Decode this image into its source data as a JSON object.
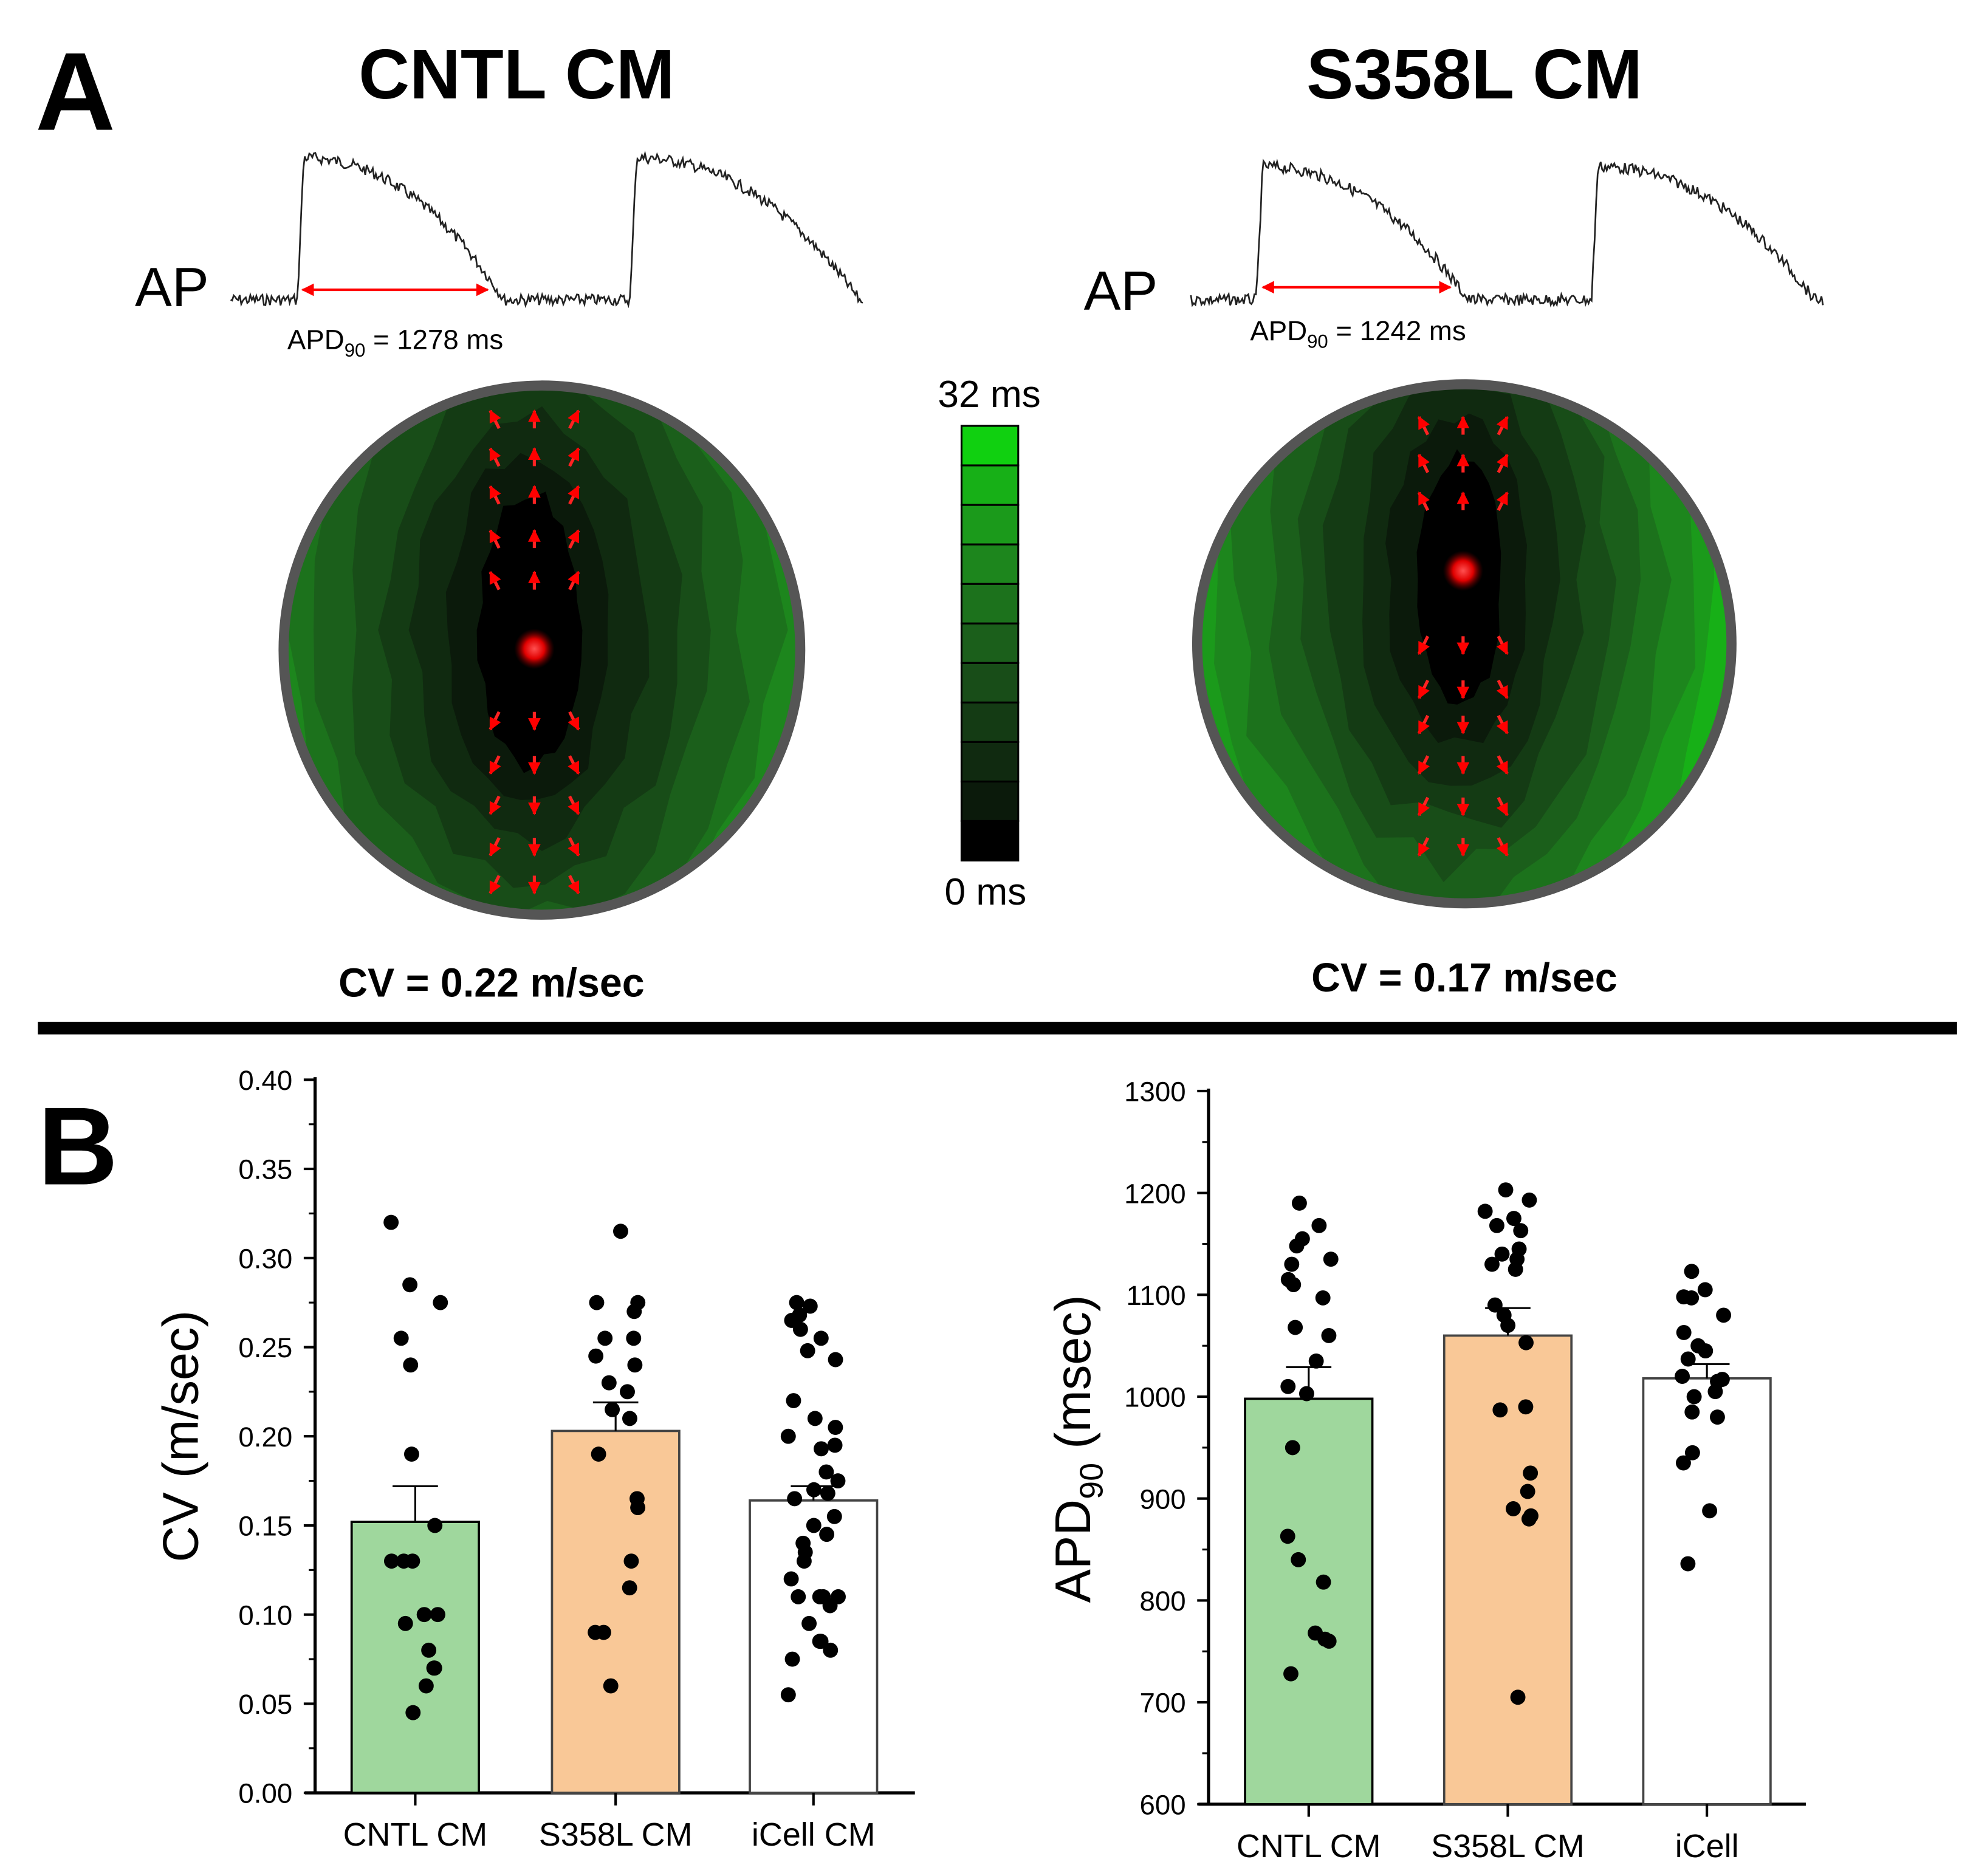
{
  "panel_a": {
    "label": "A",
    "left": {
      "title": "CNTL CM",
      "ap_label": "AP",
      "apd_prefix": "APD",
      "apd_sub": "90",
      "apd_value": " = 1278 ms",
      "cv_text": "CV = 0.22 m/sec"
    },
    "right": {
      "title": "S358L CM",
      "ap_label": "AP",
      "apd_prefix": "APD",
      "apd_sub": "90",
      "apd_value": " = 1242 ms",
      "cv_text": "CV = 0.17 m/sec"
    },
    "colorbar": {
      "max_label": "32 ms",
      "min_label": "0 ms",
      "range_ms": [
        0,
        32
      ],
      "segments": 11,
      "colors": [
        "#000000",
        "#0b1a0b",
        "#102a10",
        "#143b14",
        "#184d18",
        "#1b5f1b",
        "#1c721c",
        "#1d861d",
        "#1b9a1b",
        "#17b017",
        "#10d010"
      ]
    }
  },
  "panel_b": {
    "label": "B"
  },
  "chart_data": [
    {
      "type": "bar",
      "title": "",
      "xlabel": "",
      "ylabel": "CV (m/sec)",
      "ylim": [
        0,
        0.4
      ],
      "yticks": [
        "0.00",
        "0.05",
        "0.10",
        "0.15",
        "0.20",
        "0.25",
        "0.30",
        "0.35",
        "0.40"
      ],
      "categories": [
        "CNTL CM",
        "S358L CM",
        "iCell CM"
      ],
      "colors": [
        "#9fd79d",
        "#f9c897",
        "#ffffff"
      ],
      "values": [
        0.152,
        0.203,
        0.164
      ],
      "error_upper": [
        0.172,
        0.219,
        0.172
      ],
      "points": [
        [
          0.32,
          0.285,
          0.275,
          0.255,
          0.24,
          0.19,
          0.15,
          0.13,
          0.13,
          0.13,
          0.1,
          0.1,
          0.095,
          0.08,
          0.07,
          0.07,
          0.06,
          0.045
        ],
        [
          0.315,
          0.275,
          0.275,
          0.27,
          0.255,
          0.255,
          0.245,
          0.24,
          0.23,
          0.225,
          0.215,
          0.21,
          0.19,
          0.165,
          0.16,
          0.13,
          0.115,
          0.09,
          0.09,
          0.06
        ],
        [
          0.275,
          0.273,
          0.268,
          0.265,
          0.26,
          0.255,
          0.248,
          0.243,
          0.22,
          0.21,
          0.205,
          0.2,
          0.195,
          0.193,
          0.18,
          0.175,
          0.17,
          0.168,
          0.165,
          0.155,
          0.15,
          0.145,
          0.14,
          0.135,
          0.13,
          0.12,
          0.11,
          0.11,
          0.11,
          0.11,
          0.105,
          0.095,
          0.085,
          0.085,
          0.08,
          0.075,
          0.055
        ]
      ]
    },
    {
      "type": "bar",
      "title": "",
      "xlabel": "",
      "ylabel_main": "APD",
      "ylabel_sub": "90",
      "ylabel_unit": " (msec)",
      "ylim": [
        600,
        1300
      ],
      "yticks": [
        "600",
        "700",
        "800",
        "900",
        "1000",
        "1100",
        "1200",
        "1300"
      ],
      "categories": [
        "CNTL CM",
        "S358L CM",
        "iCell"
      ],
      "colors": [
        "#9fd79d",
        "#f9c897",
        "#ffffff"
      ],
      "values": [
        998,
        1060,
        1018
      ],
      "error_upper": [
        1029,
        1087,
        1032
      ],
      "points": [
        [
          1190,
          1168,
          1155,
          1148,
          1135,
          1130,
          1115,
          1110,
          1097,
          1068,
          1060,
          1035,
          1010,
          1003,
          950,
          863,
          840,
          818,
          768,
          762,
          760,
          728
        ],
        [
          1203,
          1193,
          1182,
          1175,
          1168,
          1163,
          1145,
          1140,
          1135,
          1130,
          1125,
          1090,
          1080,
          1070,
          1053,
          990,
          987,
          925,
          907,
          890,
          880,
          883,
          705
        ],
        [
          1123,
          1105,
          1098,
          1097,
          1080,
          1063,
          1050,
          1045,
          1037,
          1020,
          1017,
          1015,
          1005,
          1000,
          985,
          980,
          945,
          935,
          888,
          836
        ]
      ]
    }
  ]
}
